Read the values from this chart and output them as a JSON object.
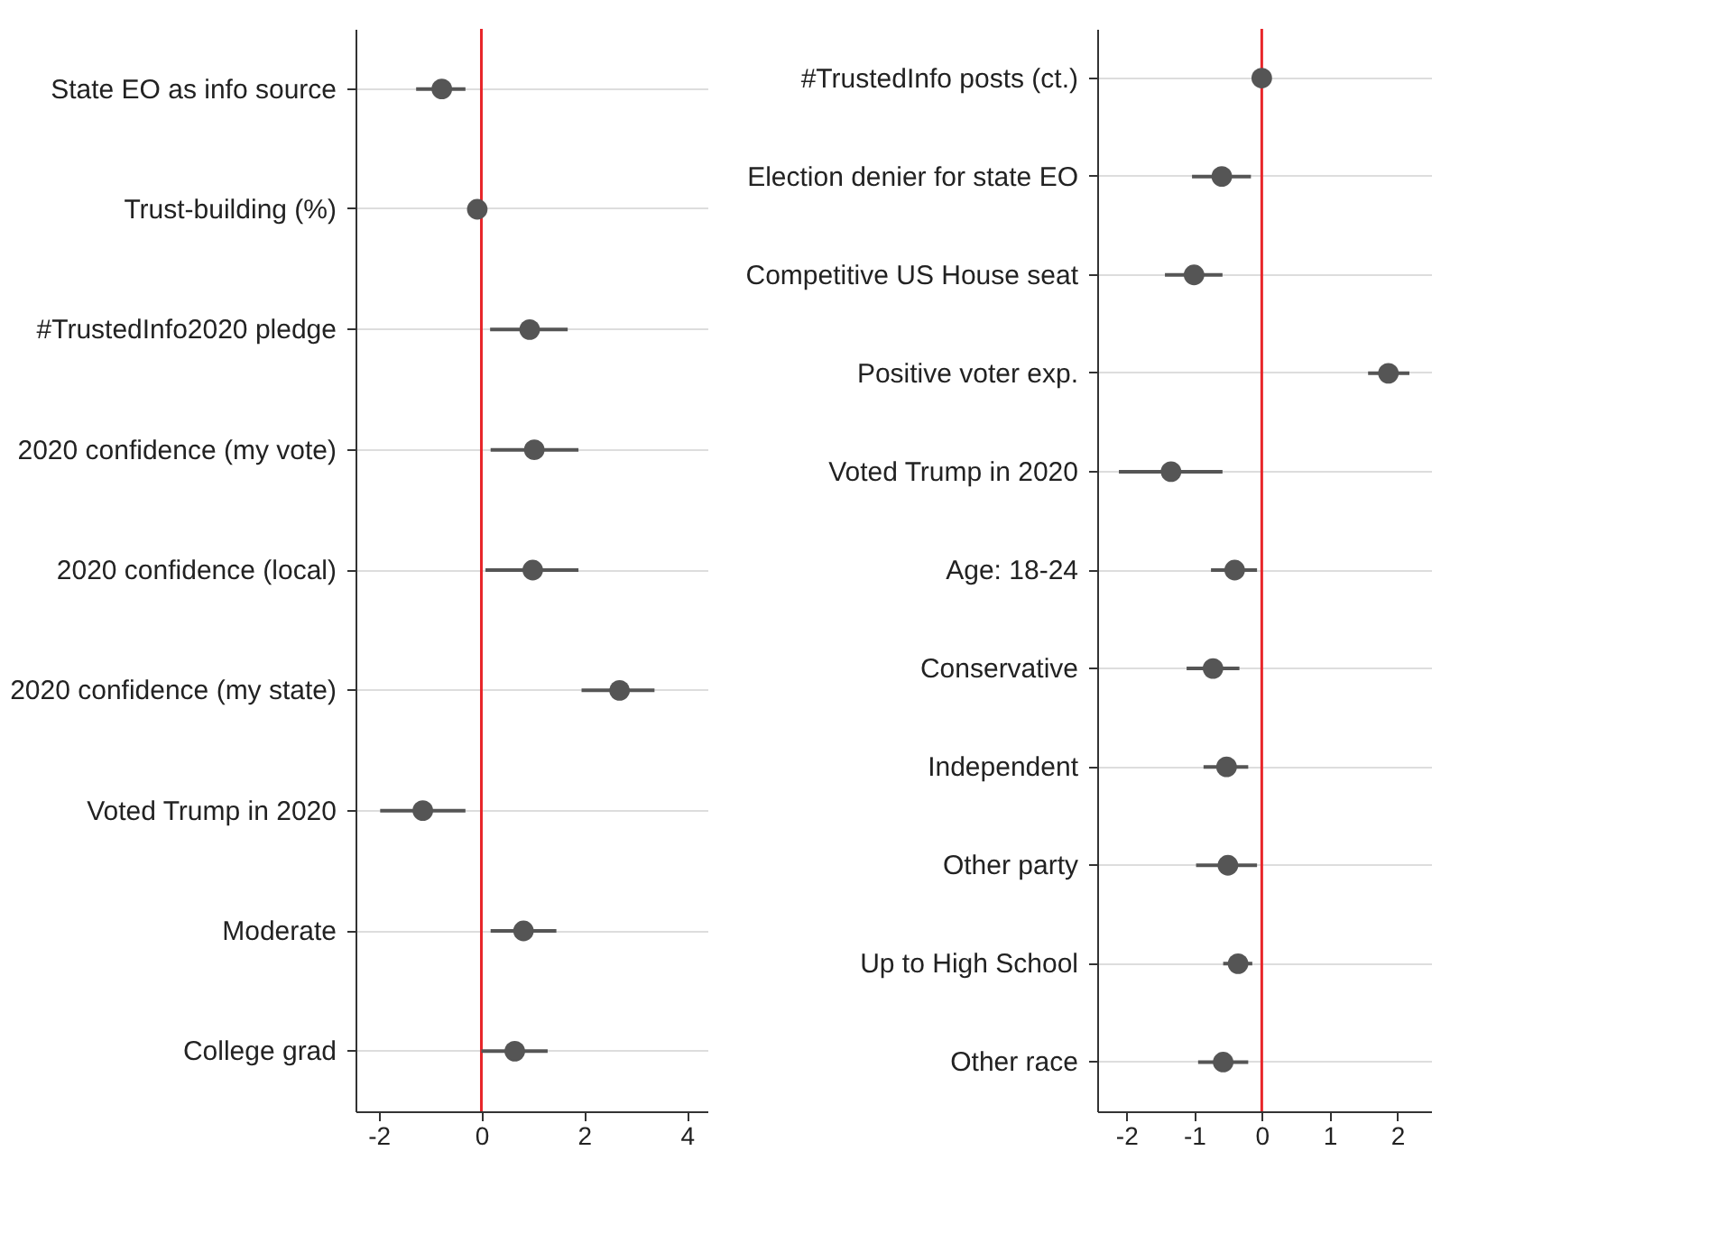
{
  "chart_data": [
    {
      "type": "scatter",
      "orientation": "horizontal",
      "marker": "circle",
      "grid": "y",
      "color": "#555555",
      "categories": [
        "State EO as info source",
        "Trust-building (%)",
        "#TrustedInfo2020 pledge",
        "2020 confidence (my vote)",
        "2020 confidence (local)",
        "2020 confidence (my state)",
        "Voted Trump in 2020",
        "Moderate",
        "College grad"
      ],
      "values": [
        -0.77,
        -0.08,
        0.94,
        1.03,
        1.0,
        2.69,
        -1.14,
        0.82,
        0.65
      ],
      "errors": [
        [
          -1.27,
          -0.31
        ],
        null,
        [
          0.17,
          1.68
        ],
        [
          0.18,
          1.89
        ],
        [
          0.08,
          1.89
        ],
        [
          1.95,
          3.37
        ],
        [
          -1.97,
          -0.31
        ],
        [
          0.18,
          1.46
        ],
        [
          0.0,
          1.29
        ]
      ],
      "xlim": [
        -2.45,
        4.4
      ],
      "xticks": [
        -2,
        0,
        2,
        4
      ],
      "ref_lines": [
        {
          "axis": "x",
          "value": 0,
          "color": "#e8262a"
        }
      ]
    },
    {
      "type": "scatter",
      "orientation": "horizontal",
      "marker": "circle",
      "grid": "y",
      "color": "#555555",
      "categories": [
        "#TrustedInfo posts (ct.)",
        "Election denier for state EO",
        "Competitive US House seat",
        "Positive voter exp.",
        "Voted Trump in 2020",
        "Age: 18-24",
        "Conservative",
        "Independent",
        "Other party",
        "Up to High School",
        "Other race"
      ],
      "values": [
        0.0,
        -0.59,
        -1.0,
        1.87,
        -1.34,
        -0.4,
        -0.72,
        -0.52,
        -0.5,
        -0.35,
        -0.57
      ],
      "errors": [
        null,
        [
          -1.03,
          -0.16
        ],
        [
          -1.43,
          -0.58
        ],
        [
          1.57,
          2.18
        ],
        [
          -2.11,
          -0.58
        ],
        [
          -0.75,
          -0.07
        ],
        [
          -1.11,
          -0.33
        ],
        [
          -0.86,
          -0.2
        ],
        [
          -0.97,
          -0.07
        ],
        [
          -0.57,
          -0.14
        ],
        [
          -0.94,
          -0.2
        ]
      ],
      "xlim": [
        -2.43,
        2.5
      ],
      "xticks": [
        -2,
        -1,
        0,
        1,
        2
      ],
      "ref_lines": [
        {
          "axis": "x",
          "value": 0,
          "color": "#e8262a"
        }
      ]
    }
  ]
}
